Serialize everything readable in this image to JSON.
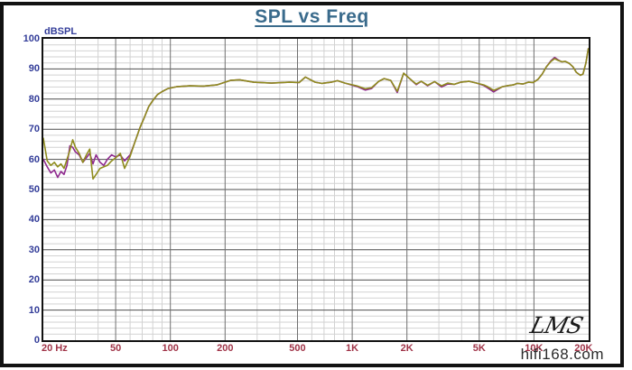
{
  "page": {
    "logo": "LMS",
    "watermark": "hifi168.com"
  },
  "colors": {
    "title": "#3a6b8c",
    "y_axis_text": "#333d99",
    "x_axis_text": "#a03448",
    "grid_minor": "#d2d2d2",
    "grid_major_h": "#4f4f4f",
    "grid_major_v": "#707070",
    "plot_border": "#111111",
    "frame": "#121212",
    "trace1": "#8e2a8e",
    "trace2": "#8f8c1e"
  },
  "chart_data": {
    "type": "line",
    "title": "SPL vs Freq",
    "ylabel": "dBSPL",
    "xlabel": "Hz",
    "x_scale": "log",
    "xlim": [
      20,
      20000
    ],
    "ylim": [
      0,
      100
    ],
    "y_tick_step": 10,
    "y_minor_step": 2,
    "grid": true,
    "legend": "none",
    "x_major_gridlines": [
      50,
      100,
      200,
      500,
      1000,
      2000,
      5000,
      10000
    ],
    "x_ticks": [
      {
        "label": "20 Hz",
        "f": 20
      },
      {
        "label": "50",
        "f": 50
      },
      {
        "label": "100",
        "f": 100
      },
      {
        "label": "200",
        "f": 200
      },
      {
        "label": "500",
        "f": 500
      },
      {
        "label": "1K",
        "f": 1000
      },
      {
        "label": "2K",
        "f": 2000
      },
      {
        "label": "5K",
        "f": 5000
      },
      {
        "label": "10K",
        "f": 10000
      },
      {
        "label": "20K",
        "f": 20000
      }
    ],
    "y_ticks": [
      {
        "label": "100",
        "value": 100
      },
      {
        "label": "90",
        "value": 90
      },
      {
        "label": "80",
        "value": 80
      },
      {
        "label": "70",
        "value": 70
      },
      {
        "label": "60",
        "value": 60
      },
      {
        "label": "50",
        "value": 50
      },
      {
        "label": "40",
        "value": 40
      },
      {
        "label": "30",
        "value": 30
      },
      {
        "label": "20",
        "value": 20
      },
      {
        "label": "10",
        "value": 10
      },
      {
        "label": "0",
        "value": 0
      }
    ],
    "x": [
      20,
      21,
      22,
      23,
      24,
      25,
      26,
      27,
      28,
      29,
      30,
      31.5,
      33,
      34.5,
      36,
      37.5,
      39,
      41,
      43,
      45,
      47.5,
      50,
      53,
      56,
      60,
      64,
      68,
      72,
      76,
      80,
      85,
      90,
      97,
      108,
      128,
      152,
      180,
      214,
      240,
      287,
      360,
      452,
      511,
      553,
      586,
      627,
      680,
      766,
      830,
      914,
      1060,
      1180,
      1280,
      1400,
      1500,
      1630,
      1770,
      1920,
      2100,
      2250,
      2400,
      2600,
      2840,
      3100,
      3350,
      3650,
      3950,
      4400,
      4850,
      5300,
      5600,
      6000,
      6350,
      6700,
      7100,
      7700,
      8100,
      8700,
      9300,
      9900,
      10500,
      11100,
      11700,
      12400,
      13000,
      13600,
      14200,
      14900,
      15600,
      16400,
      17100,
      18000,
      18600,
      19300,
      19900
    ],
    "series": [
      {
        "name": "Trace 1 (magenta)",
        "color": "#8e2a8e",
        "values": [
          60,
          57.5,
          55.5,
          56.5,
          54,
          56,
          55,
          58,
          64.5,
          64,
          62.5,
          61.5,
          59,
          60.5,
          62,
          58.5,
          61.5,
          59,
          58,
          60,
          61.5,
          60.8,
          61.5,
          59.5,
          61.5,
          66,
          70.5,
          74,
          77.5,
          79.5,
          81.5,
          82.5,
          83.5,
          84.1,
          84.4,
          84.3,
          84.7,
          86.2,
          86.4,
          85.6,
          85.3,
          85.6,
          85.5,
          87.3,
          86.5,
          85.6,
          85.2,
          85.6,
          86.1,
          85.3,
          84.2,
          83.0,
          83.5,
          85.9,
          86.8,
          86.2,
          82.2,
          88.6,
          86.5,
          84.8,
          85.9,
          84.4,
          85.8,
          84.0,
          85.0,
          84.9,
          85.6,
          85.9,
          85.3,
          84.5,
          83.6,
          82.4,
          83.3,
          84.1,
          84.4,
          84.7,
          85.2,
          85.0,
          85.6,
          85.5,
          86.5,
          88.3,
          90.7,
          92.7,
          93.8,
          93.0,
          92.4,
          92.5,
          91.9,
          90.7,
          88.9,
          87.9,
          88.3,
          91.9,
          96.7
        ]
      },
      {
        "name": "Trace 2 (olive)",
        "color": "#8f8c1e",
        "values": [
          67,
          59.5,
          58,
          59,
          57.5,
          58.5,
          57,
          60,
          63,
          66.5,
          64,
          62,
          59,
          61.5,
          63.4,
          53.5,
          55,
          57,
          57.5,
          58,
          59.5,
          60.5,
          62,
          57,
          61,
          66,
          70.5,
          74,
          77.5,
          79.5,
          81.5,
          82.5,
          83.5,
          84.1,
          84.4,
          84.3,
          84.7,
          86.2,
          86.4,
          85.6,
          85.3,
          85.6,
          85.5,
          87.3,
          86.5,
          85.6,
          85.2,
          85.6,
          86.1,
          85.3,
          84.4,
          83.4,
          83.8,
          85.9,
          86.8,
          86.2,
          82.6,
          88.6,
          86.5,
          85.0,
          85.9,
          84.6,
          85.8,
          84.4,
          85.3,
          84.9,
          85.6,
          85.9,
          85.3,
          84.7,
          84.0,
          82.9,
          83.5,
          84.1,
          84.4,
          84.7,
          85.2,
          85.0,
          85.6,
          85.5,
          86.5,
          88.3,
          90.7,
          92.5,
          93.4,
          92.8,
          92.4,
          92.5,
          91.9,
          90.7,
          88.9,
          87.9,
          88.3,
          91.9,
          96.7
        ]
      }
    ]
  }
}
